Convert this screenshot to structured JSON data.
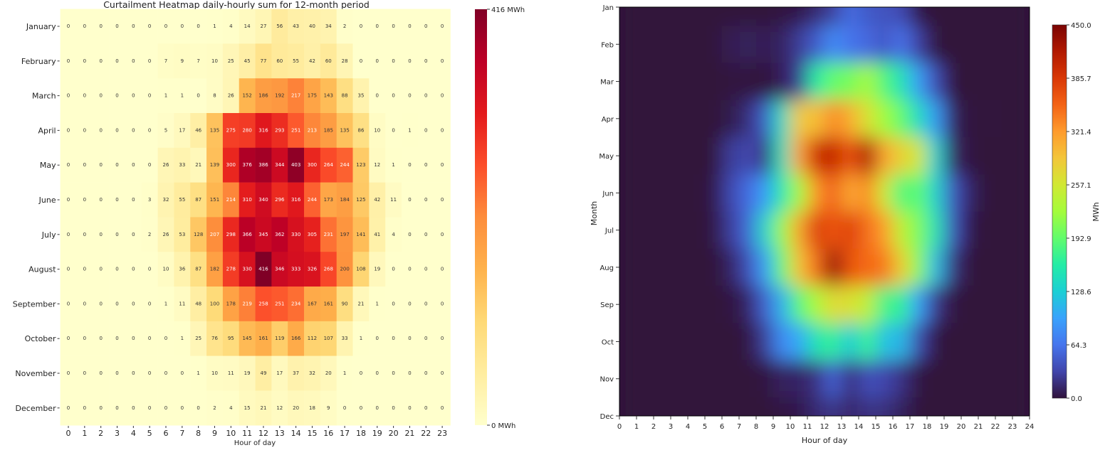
{
  "chart_data": [
    {
      "type": "heatmap",
      "title": "Curtailment Heatmap daily-hourly sum for 12-month period",
      "xlabel": "Hour of day",
      "ylabel": "",
      "x": [
        0,
        1,
        2,
        3,
        4,
        5,
        6,
        7,
        8,
        9,
        10,
        11,
        12,
        13,
        14,
        15,
        16,
        17,
        18,
        19,
        20,
        21,
        22,
        23
      ],
      "y": [
        "January",
        "February",
        "March",
        "April",
        "May",
        "June",
        "July",
        "August",
        "September",
        "October",
        "November",
        "December"
      ],
      "values": [
        [
          0,
          0,
          0,
          0,
          0,
          0,
          0,
          0,
          0,
          1,
          4,
          14,
          27,
          56,
          43,
          40,
          34,
          2,
          0,
          0,
          0,
          0,
          0,
          0
        ],
        [
          0,
          0,
          0,
          0,
          0,
          0,
          7,
          9,
          7,
          10,
          25,
          45,
          77,
          60,
          55,
          42,
          60,
          28,
          0,
          0,
          0,
          0,
          0,
          0
        ],
        [
          0,
          0,
          0,
          0,
          0,
          0,
          1,
          1,
          0,
          8,
          26,
          152,
          186,
          192,
          217,
          175,
          143,
          88,
          35,
          0,
          0,
          0,
          0,
          0
        ],
        [
          0,
          0,
          0,
          0,
          0,
          0,
          5,
          17,
          46,
          135,
          275,
          280,
          316,
          293,
          251,
          213,
          185,
          135,
          86,
          10,
          0,
          1,
          0,
          0
        ],
        [
          0,
          0,
          0,
          0,
          0,
          0,
          26,
          33,
          21,
          139,
          300,
          376,
          386,
          344,
          403,
          300,
          264,
          244,
          123,
          12,
          1,
          0,
          0,
          0
        ],
        [
          0,
          0,
          0,
          0,
          0,
          3,
          32,
          55,
          87,
          151,
          214,
          310,
          340,
          296,
          316,
          244,
          173,
          184,
          125,
          42,
          11,
          0,
          0,
          0
        ],
        [
          0,
          0,
          0,
          0,
          0,
          2,
          26,
          53,
          128,
          207,
          298,
          366,
          345,
          362,
          330,
          305,
          231,
          197,
          141,
          41,
          4,
          0,
          0,
          0
        ],
        [
          0,
          0,
          0,
          0,
          0,
          0,
          10,
          36,
          87,
          182,
          278,
          330,
          416,
          346,
          333,
          326,
          268,
          200,
          108,
          19,
          0,
          0,
          0,
          0
        ],
        [
          0,
          0,
          0,
          0,
          0,
          0,
          1,
          11,
          48,
          100,
          178,
          219,
          258,
          251,
          234,
          167,
          161,
          90,
          21,
          1,
          0,
          0,
          0,
          0
        ],
        [
          0,
          0,
          0,
          0,
          0,
          0,
          0,
          1,
          25,
          76,
          95,
          145,
          161,
          119,
          166,
          112,
          107,
          33,
          1,
          0,
          0,
          0,
          0,
          0
        ],
        [
          0,
          0,
          0,
          0,
          0,
          0,
          0,
          0,
          1,
          10,
          11,
          19,
          49,
          17,
          37,
          32,
          20,
          1,
          0,
          0,
          0,
          0,
          0,
          0
        ],
        [
          0,
          0,
          0,
          0,
          0,
          0,
          0,
          0,
          0,
          2,
          4,
          15,
          21,
          12,
          20,
          18,
          9,
          0,
          0,
          0,
          0,
          0,
          0,
          0
        ]
      ],
      "colormap": "YlOrRd",
      "colormap_stops": [
        "#ffffcc",
        "#ffeda0",
        "#fed976",
        "#feb24c",
        "#fd8d3c",
        "#fc4e2a",
        "#e31a1c",
        "#bd0026",
        "#800026"
      ],
      "colorbar": {
        "max_label": "416 MWh",
        "min_label": "0 MWh",
        "range": [
          0,
          416
        ]
      }
    },
    {
      "type": "contour",
      "title": "",
      "xlabel": "Hour of day",
      "ylabel": "Month",
      "xlim": [
        0,
        24
      ],
      "xticks": [
        "0",
        "1",
        "2",
        "3",
        "4",
        "5",
        "6",
        "7",
        "8",
        "9",
        "10",
        "11",
        "12",
        "13",
        "14",
        "15",
        "16",
        "17",
        "18",
        "19",
        "20",
        "21",
        "22",
        "23",
        "24"
      ],
      "yticks": [
        "Jan",
        "Feb",
        "Mar",
        "Apr",
        "May",
        "Jun",
        "Jul",
        "Aug",
        "Sep",
        "Oct",
        "Nov",
        "Dec"
      ],
      "source": "same monthly-hourly values as heatmap (smoothed)",
      "colormap": "turbo",
      "colormap_stops": [
        "#30123b",
        "#4145ab",
        "#4675ed",
        "#39a2fc",
        "#1bcfd4",
        "#24eca6",
        "#61fc6c",
        "#a4fc3b",
        "#d1e834",
        "#f3c63a",
        "#fe9b2d",
        "#f36315",
        "#d93806",
        "#b11901",
        "#7a0403"
      ],
      "colorbar": {
        "label": "MWh",
        "ticks": [
          "450.0",
          "385.7",
          "321.4",
          "257.1",
          "192.9",
          "128.6",
          "64.3",
          "0.0"
        ],
        "range": [
          0,
          450
        ]
      }
    }
  ]
}
